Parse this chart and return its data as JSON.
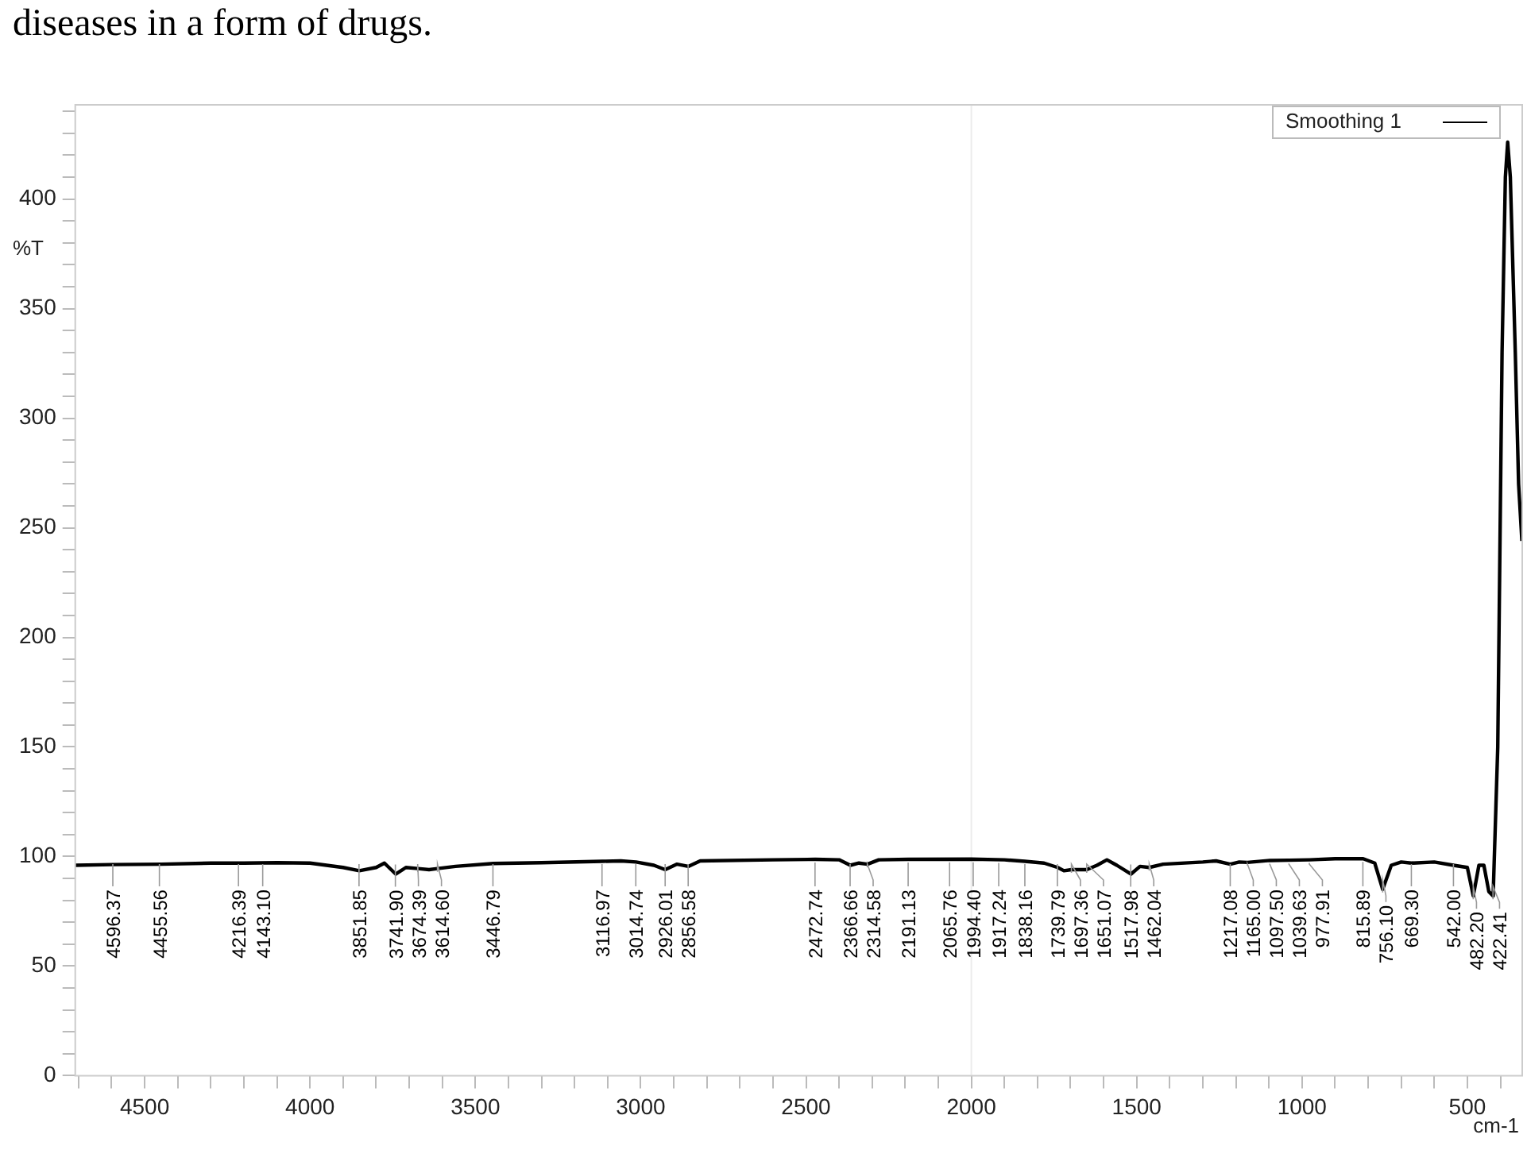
{
  "chart_data": {
    "type": "line",
    "xlabel": "cm-1",
    "ylabel": "%T",
    "legend": "top right",
    "xlim": [
      4710,
      334
    ],
    "ylim": [
      0,
      443
    ],
    "xticks": [
      {
        "value": 4700,
        "label": null
      },
      {
        "value": 4600,
        "label": null
      },
      4500,
      {
        "value": 4400,
        "label": null
      },
      {
        "value": 4300,
        "label": null
      },
      {
        "value": 4200,
        "label": null
      },
      {
        "value": 4100,
        "label": null
      },
      4000,
      {
        "value": 3900,
        "label": null
      },
      {
        "value": 3800,
        "label": null
      },
      {
        "value": 3700,
        "label": null
      },
      {
        "value": 3600,
        "label": null
      },
      3500,
      {
        "value": 3400,
        "label": null
      },
      {
        "value": 3300,
        "label": null
      },
      {
        "value": 3200,
        "label": null
      },
      {
        "value": 3100,
        "label": null
      },
      3000,
      {
        "value": 2900,
        "label": null
      },
      {
        "value": 2800,
        "label": null
      },
      {
        "value": 2700,
        "label": null
      },
      {
        "value": 2600,
        "label": null
      },
      2500,
      {
        "value": 2400,
        "label": null
      },
      {
        "value": 2300,
        "label": null
      },
      {
        "value": 2200,
        "label": null
      },
      {
        "value": 2100,
        "label": null
      },
      2000,
      {
        "value": 1900,
        "label": null
      },
      {
        "value": 1800,
        "label": null
      },
      {
        "value": 1700,
        "label": null
      },
      {
        "value": 1600,
        "label": null
      },
      1500,
      {
        "value": 1400,
        "label": null
      },
      {
        "value": 1300,
        "label": null
      },
      {
        "value": 1200,
        "label": null
      },
      {
        "value": 1100,
        "label": null
      },
      1000,
      {
        "value": 900,
        "label": null
      },
      {
        "value": 800,
        "label": null
      },
      {
        "value": 700,
        "label": null
      },
      {
        "value": 600,
        "label": null
      },
      500,
      {
        "value": 400,
        "label": null
      }
    ],
    "yticks": [
      0,
      {
        "value": 10,
        "label": null
      },
      {
        "value": 20,
        "label": null
      },
      {
        "value": 30,
        "label": null
      },
      {
        "value": 40,
        "label": null
      },
      50,
      {
        "value": 60,
        "label": null
      },
      {
        "value": 70,
        "label": null
      },
      {
        "value": 80,
        "label": null
      },
      {
        "value": 90,
        "label": null
      },
      100,
      {
        "value": 110,
        "label": null
      },
      {
        "value": 120,
        "label": null
      },
      {
        "value": 130,
        "label": null
      },
      {
        "value": 140,
        "label": null
      },
      150,
      {
        "value": 160,
        "label": null
      },
      {
        "value": 170,
        "label": null
      },
      {
        "value": 180,
        "label": null
      },
      {
        "value": 190,
        "label": null
      },
      200,
      {
        "value": 210,
        "label": null
      },
      {
        "value": 220,
        "label": null
      },
      {
        "value": 230,
        "label": null
      },
      {
        "value": 240,
        "label": null
      },
      250,
      {
        "value": 260,
        "label": null
      },
      {
        "value": 270,
        "label": null
      },
      {
        "value": 280,
        "label": null
      },
      {
        "value": 290,
        "label": null
      },
      300,
      {
        "value": 310,
        "label": null
      },
      {
        "value": 320,
        "label": null
      },
      {
        "value": 330,
        "label": null
      },
      {
        "value": 340,
        "label": null
      },
      350,
      {
        "value": 360,
        "label": null
      },
      {
        "value": 370,
        "label": null
      },
      {
        "value": 380,
        "label": null
      },
      {
        "value": 390,
        "label": null
      },
      400,
      {
        "value": 410,
        "label": null
      },
      {
        "value": 420,
        "label": null
      },
      {
        "value": 430,
        "label": null
      },
      {
        "value": 440,
        "label": null
      }
    ],
    "ref_lines": [
      {
        "axis": "x",
        "value": 2000,
        "color": "#ececec"
      }
    ],
    "series": [
      {
        "name": "Smoothing 1",
        "color": "#000000",
        "x": [
          4710,
          4600,
          4450,
          4300,
          4200,
          4100,
          4000,
          3900,
          3851,
          3800,
          3775,
          3741,
          3710,
          3674,
          3640,
          3614,
          3560,
          3446,
          3300,
          3116,
          3060,
          3014,
          2960,
          2926,
          2890,
          2856,
          2820,
          2600,
          2472,
          2400,
          2366,
          2340,
          2314,
          2280,
          2191,
          2000,
          1900,
          1838,
          1780,
          1739,
          1720,
          1697,
          1651,
          1620,
          1590,
          1560,
          1517,
          1490,
          1462,
          1420,
          1300,
          1260,
          1217,
          1190,
          1165,
          1097,
          1039,
          977,
          900,
          815,
          780,
          756,
          730,
          700,
          669,
          600,
          542,
          500,
          482,
          465,
          450,
          435,
          422,
          408,
          395,
          385,
          378,
          370,
          355,
          345,
          335
        ],
        "values": [
          96,
          96.3,
          96.5,
          97,
          97,
          97.2,
          97,
          95,
          93.5,
          95,
          97,
          92,
          95,
          94.5,
          94,
          94.5,
          95.5,
          96.8,
          97.2,
          97.8,
          98,
          97.5,
          96,
          94,
          96.5,
          95.5,
          98,
          98.5,
          98.7,
          98.5,
          96,
          97,
          96.5,
          98.5,
          98.7,
          98.8,
          98.5,
          97.8,
          97,
          95,
          93.5,
          94,
          94,
          96,
          98.5,
          96,
          92,
          95.5,
          95,
          96.5,
          97.5,
          98,
          96.5,
          97.5,
          97.3,
          98.2,
          98.3,
          98.5,
          99,
          99,
          97,
          85,
          96,
          97.5,
          97,
          97.5,
          96,
          95,
          82,
          96,
          96,
          84,
          82,
          150,
          330,
          410,
          426,
          410,
          330,
          270,
          244
        ]
      }
    ],
    "annotations": [
      "diseases in a form of drugs.",
      {
        "text": "4596.37",
        "x": 4596.37,
        "y": 96.3
      },
      {
        "text": "4455.56",
        "x": 4455.56,
        "y": 96.5
      },
      {
        "text": "4216.39",
        "x": 4216.39,
        "y": 97
      },
      {
        "text": "4143.10",
        "x": 4143.1,
        "y": 97.1
      },
      {
        "text": "3851.85",
        "x": 3851.85,
        "y": 93.5
      },
      {
        "text": "3741.90",
        "x": 3741.9,
        "y": 92
      },
      {
        "text": "3674.39",
        "x": 3674.39,
        "y": 94.5
      },
      {
        "text": "3614.60",
        "x": 3614.6,
        "y": 94.5
      },
      {
        "text": "3446.79",
        "x": 3446.79,
        "y": 96.8
      },
      {
        "text": "3116.97",
        "x": 3116.97,
        "y": 97.8
      },
      {
        "text": "3014.74",
        "x": 3014.74,
        "y": 97.5
      },
      {
        "text": "2926.01",
        "x": 2926.01,
        "y": 94
      },
      {
        "text": "2856.58",
        "x": 2856.58,
        "y": 95.5
      },
      {
        "text": "2472.74",
        "x": 2472.74,
        "y": 98.7
      },
      {
        "text": "2366.66",
        "x": 2366.66,
        "y": 96
      },
      {
        "text": "2314.58",
        "x": 2314.58,
        "y": 96.5
      },
      {
        "text": "2191.13",
        "x": 2191.13,
        "y": 98.7
      },
      {
        "text": "2065.76",
        "x": 2065.76,
        "y": 98.8
      },
      {
        "text": "1994.40",
        "x": 1994.4,
        "y": 98.8
      },
      {
        "text": "1917.24",
        "x": 1917.24,
        "y": 98.5
      },
      {
        "text": "1838.16",
        "x": 1838.16,
        "y": 97.8
      },
      {
        "text": "1739.79",
        "x": 1739.79,
        "y": 95
      },
      {
        "text": "1697.36",
        "x": 1697.36,
        "y": 94
      },
      {
        "text": "1651.07",
        "x": 1651.07,
        "y": 94
      },
      {
        "text": "1517.98",
        "x": 1517.98,
        "y": 92
      },
      {
        "text": "1462.04",
        "x": 1462.04,
        "y": 95
      },
      {
        "text": "1217.08",
        "x": 1217.08,
        "y": 96.5
      },
      {
        "text": "1165.00",
        "x": 1165,
        "y": 97.3
      },
      {
        "text": "1097.50",
        "x": 1097.5,
        "y": 98.2
      },
      {
        "text": "1039.63",
        "x": 1039.63,
        "y": 98.3
      },
      {
        "text": "977.91",
        "x": 977.91,
        "y": 98.5
      },
      {
        "text": "815.89",
        "x": 815.89,
        "y": 99
      },
      {
        "text": "756.10",
        "x": 756.1,
        "y": 85
      },
      {
        "text": "669.30",
        "x": 669.3,
        "y": 97
      },
      {
        "text": "542.00",
        "x": 542,
        "y": 96
      },
      {
        "text": "482.20",
        "x": 482.2,
        "y": 82
      },
      {
        "text": "422.41",
        "x": 422.41,
        "y": 82
      }
    ]
  }
}
